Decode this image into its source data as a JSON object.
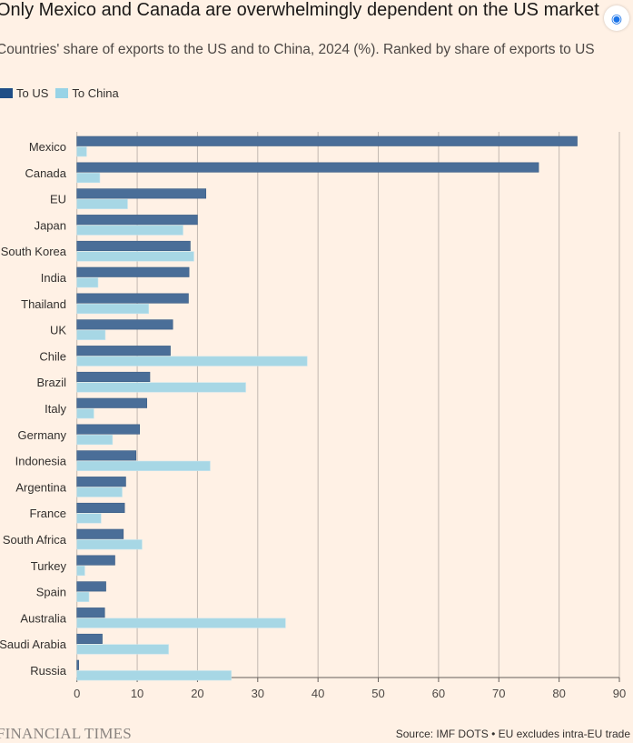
{
  "chart_data": {
    "type": "bar",
    "orientation": "horizontal",
    "title": "Only Mexico and Canada are overwhelmingly dependent on the US market",
    "subtitle": "Countries' share of exports to the US and to China, 2024 (%). Ranked by share of exports to US",
    "categories": [
      "Mexico",
      "Canada",
      "EU",
      "Japan",
      "South Korea",
      "India",
      "Thailand",
      "UK",
      "Chile",
      "Brazil",
      "Italy",
      "Germany",
      "Indonesia",
      "Argentina",
      "France",
      "South Africa",
      "Turkey",
      "Spain",
      "Australia",
      "Saudi Arabia",
      "Russia"
    ],
    "series": [
      {
        "name": "To US",
        "color": "#4a6e98",
        "values": [
          83.0,
          76.6,
          21.4,
          20.0,
          18.8,
          18.6,
          18.5,
          15.9,
          15.5,
          12.1,
          11.6,
          10.4,
          9.8,
          8.1,
          7.9,
          7.7,
          6.3,
          4.8,
          4.6,
          4.2,
          0.3
        ]
      },
      {
        "name": "To China",
        "color": "#a7d7e5",
        "values": [
          1.6,
          3.8,
          8.4,
          17.6,
          19.4,
          3.5,
          11.9,
          4.7,
          38.2,
          28.0,
          2.8,
          5.9,
          22.1,
          7.5,
          4.0,
          10.8,
          1.3,
          2.0,
          34.6,
          15.2,
          25.6
        ]
      }
    ],
    "xlim": [
      0,
      90
    ],
    "xticks": [
      "0",
      "10",
      "20",
      "30",
      "40",
      "50",
      "60",
      "70",
      "80",
      "90"
    ],
    "grid": true,
    "legend": "top-left",
    "source": "Source: IMF DOTS • EU excludes intra-EU trade",
    "logo": "FINANCIAL TIMES"
  },
  "legend_colors": {
    "to_us": "#1f4e86",
    "to_china": "#98d3e6"
  }
}
